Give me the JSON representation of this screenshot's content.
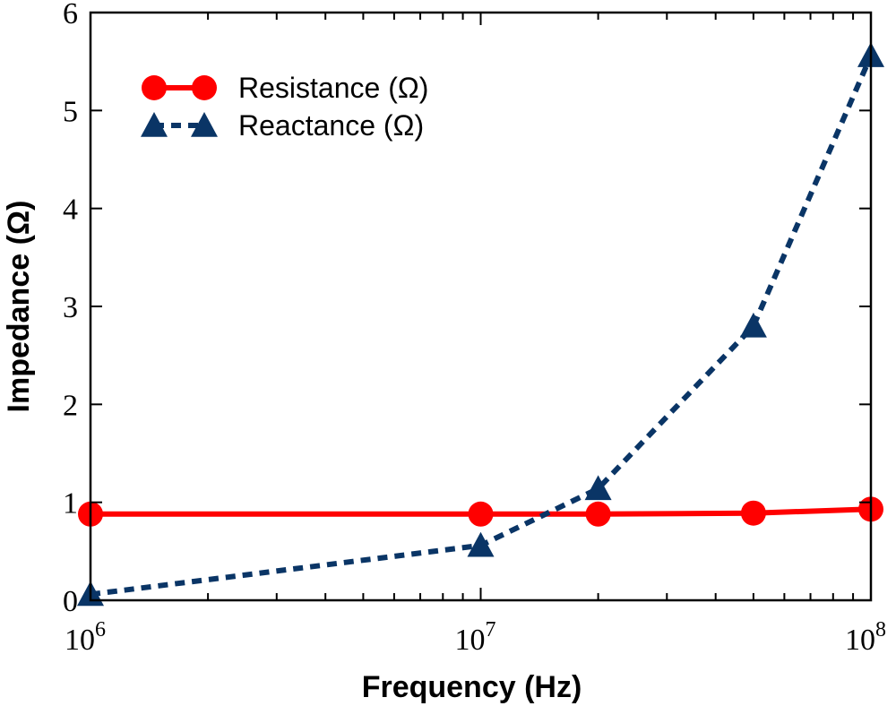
{
  "chart_data": {
    "type": "line",
    "xscale": "log",
    "xlabel": "Frequency (Hz)",
    "ylabel": "Impedance (Ω)",
    "xlim": [
      1000000,
      100000000
    ],
    "ylim": [
      0,
      6
    ],
    "yticks": [
      0,
      1,
      2,
      3,
      4,
      5,
      6
    ],
    "xticks": [
      {
        "value": 1000000,
        "base": "10",
        "exp": "6"
      },
      {
        "value": 10000000,
        "base": "10",
        "exp": "7"
      },
      {
        "value": 100000000,
        "base": "10",
        "exp": "8"
      }
    ],
    "legend_position": "top-left",
    "series": [
      {
        "name": "Resistance (Ω)",
        "color": "#ff0000",
        "marker": "circle",
        "line_style": "solid",
        "x": [
          1000000,
          10000000,
          20000000,
          50000000,
          100000000
        ],
        "values": [
          0.88,
          0.88,
          0.88,
          0.89,
          0.93
        ]
      },
      {
        "name": "Reactance (Ω)",
        "color": "#0a3566",
        "marker": "triangle",
        "line_style": "dashed",
        "x": [
          1000000,
          10000000,
          20000000,
          50000000,
          100000000
        ],
        "values": [
          0.06,
          0.56,
          1.14,
          2.8,
          5.56
        ]
      }
    ]
  }
}
